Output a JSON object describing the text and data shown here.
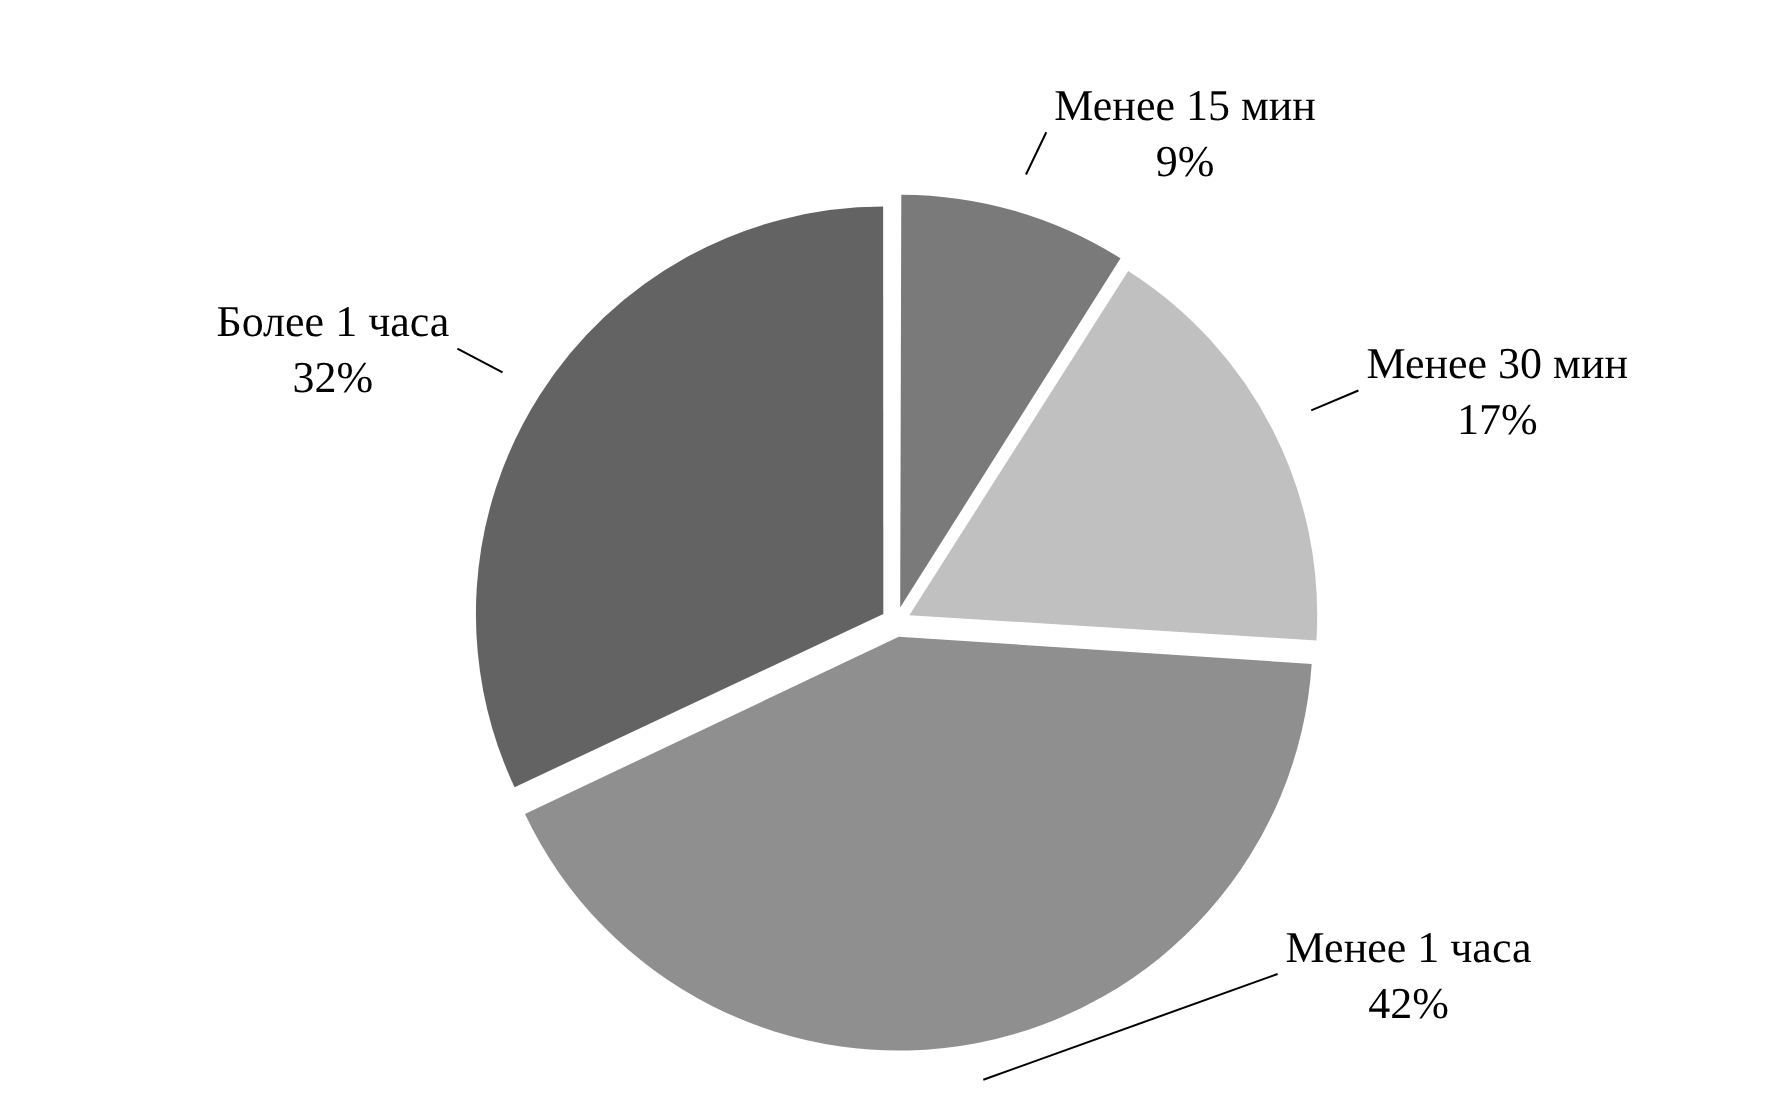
{
  "chart_data": {
    "type": "pie",
    "categories": [
      "Менее 15 мин",
      "Менее 30 мин",
      "Менее 1 часа",
      "Более 1 часа"
    ],
    "values": [
      9,
      17,
      42,
      32
    ],
    "value_labels": [
      "9%",
      "17%",
      "42%",
      "32%"
    ],
    "colors": [
      "#7a7a7a",
      "#c0c0c0",
      "#8f8f8f",
      "#636363"
    ],
    "legend": false
  }
}
